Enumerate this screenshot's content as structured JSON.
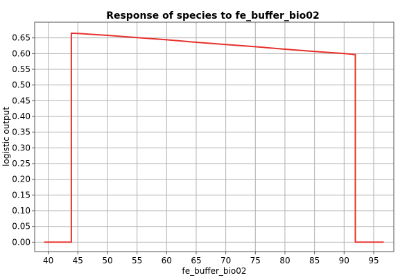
{
  "chart_data": {
    "type": "line",
    "title": "Response of species to fe_buffer_bio02",
    "xlabel": "fe_buffer_bio02",
    "ylabel": "logistic output",
    "xlim": [
      37.7,
      98.4
    ],
    "ylim": [
      -0.03,
      0.7
    ],
    "xticks": [
      40,
      45,
      50,
      55,
      60,
      65,
      70,
      75,
      80,
      85,
      90,
      95
    ],
    "yticks": [
      0.0,
      0.05,
      0.1,
      0.15,
      0.2,
      0.25,
      0.3,
      0.35,
      0.4,
      0.45,
      0.5,
      0.55,
      0.6,
      0.65
    ],
    "ytick_labels": [
      "0.00",
      "0.05",
      "0.10",
      "0.15",
      "0.20",
      "0.25",
      "0.30",
      "0.35",
      "0.40",
      "0.45",
      "0.50",
      "0.55",
      "0.60",
      "0.65"
    ],
    "grid": true,
    "series": [
      {
        "color": "#e8302a",
        "x": [
          39.3,
          43.9,
          43.9,
          45.0,
          50.0,
          55.0,
          60.0,
          65.0,
          70.0,
          75.0,
          80.0,
          85.0,
          90.0,
          91.9,
          91.9,
          96.7
        ],
        "y": [
          0.0,
          0.0,
          0.665,
          0.664,
          0.658,
          0.651,
          0.644,
          0.636,
          0.629,
          0.622,
          0.614,
          0.607,
          0.6,
          0.597,
          0.0,
          0.0
        ]
      }
    ]
  }
}
